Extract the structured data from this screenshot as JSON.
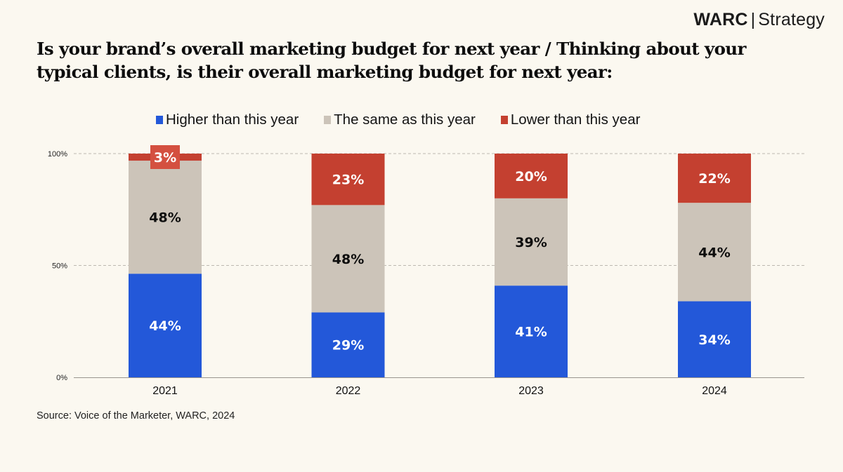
{
  "brand": {
    "name": "WARC",
    "separator": "|",
    "product": "Strategy"
  },
  "source": "Source: Voice of the Marketer, WARC, 2024",
  "chart_data": {
    "type": "bar",
    "stacked": true,
    "normalized_to_100": true,
    "title": "Is your brand’s overall marketing budget for next year / Thinking about your typical clients, is their overall marketing budget for next year:",
    "xlabel": "",
    "ylabel": "",
    "categories": [
      "2021",
      "2022",
      "2023",
      "2024"
    ],
    "series": [
      {
        "name": "Higher than this year",
        "color": "#2358d9",
        "label_color": "#ffffff",
        "values": [
          44,
          29,
          41,
          34
        ]
      },
      {
        "name": "The same as this year",
        "color": "#ccc4b9",
        "label_color": "#0d0d0d",
        "values": [
          48,
          48,
          39,
          44
        ]
      },
      {
        "name": "Lower than this year",
        "color": "#c44030",
        "label_color": "#ffffff",
        "values": [
          3,
          23,
          20,
          22
        ]
      }
    ],
    "ylim": [
      0,
      100
    ],
    "yticks": [
      "0%",
      "50%",
      "100%"
    ],
    "ytick_values": [
      0,
      50,
      100
    ],
    "grid": "dashed at 50% and 100%",
    "legend_position": "top-center"
  }
}
